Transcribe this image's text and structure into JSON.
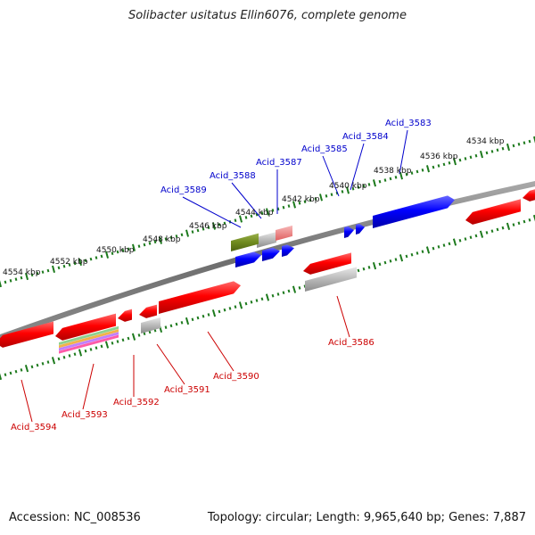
{
  "title": "Solibacter usitatus Ellin6076, complete genome",
  "footer": {
    "accession": "Accession: NC_008536",
    "topology": "Topology: circular; Length: 9,965,640 bp; Genes: 7,887"
  },
  "colors": {
    "backbone": "#7b7b7b",
    "tick": "#1d7a1d",
    "forward_gene": "#0000e6",
    "reverse_gene": "#e60000",
    "grey_feature": "#b0b0b0",
    "label_forward": "#0000cc",
    "label_reverse": "#cc0000",
    "scale_text": "#111111"
  },
  "scale_labels": [
    "4534 kbp",
    "4536 kbp",
    "4538 kbp",
    "4540 kbp",
    "4542 kbp",
    "4544 kbp",
    "4546 kbp",
    "4548 kbp",
    "4550 kbp",
    "4552 kbp",
    "4554 kbp"
  ],
  "gene_labels": {
    "forward": [
      "Acid_3583",
      "Acid_3584",
      "Acid_3585",
      "Acid_3587",
      "Acid_3588",
      "Acid_3589"
    ],
    "reverse": [
      "Acid_3586",
      "Acid_3590",
      "Acid_3591",
      "Acid_3592",
      "Acid_3593",
      "Acid_3594"
    ]
  }
}
